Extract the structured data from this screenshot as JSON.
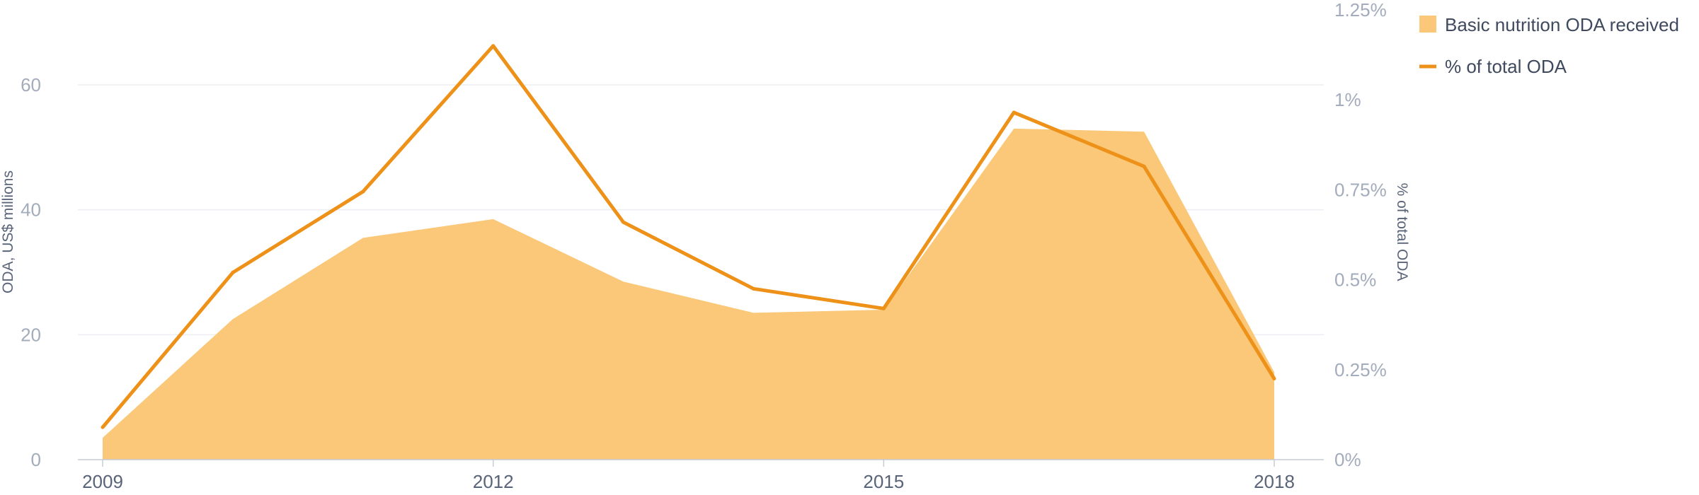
{
  "chart_data": {
    "type": "area",
    "x": [
      "2009",
      "2010",
      "2011",
      "2012",
      "2013",
      "2014",
      "2015",
      "2016",
      "2017",
      "2018"
    ],
    "series": [
      {
        "name": "Basic nutrition ODA received",
        "kind": "area",
        "axis": "left",
        "values": [
          3.5,
          22.5,
          35.5,
          38.5,
          28.5,
          23.5,
          24,
          53,
          52.5,
          14
        ],
        "color": "#fac878"
      },
      {
        "name": "% of total ODA",
        "kind": "line",
        "axis": "right",
        "values": [
          0.09,
          0.52,
          0.745,
          1.15,
          0.66,
          0.475,
          0.42,
          0.965,
          0.815,
          0.225
        ],
        "color": "#ee9118"
      }
    ],
    "x_tick_labels": [
      "2009",
      "2012",
      "2015",
      "2018"
    ],
    "x_tick_indices": [
      0,
      3,
      6,
      9
    ],
    "y_left": {
      "label": "ODA, US$ millions",
      "ticks": [
        0,
        20,
        40,
        60
      ],
      "tick_labels": [
        "0",
        "20",
        "40",
        "60"
      ],
      "range": [
        0,
        72
      ]
    },
    "y_right": {
      "label": "% of total ODA",
      "ticks": [
        0,
        0.25,
        0.5,
        0.75,
        1,
        1.25
      ],
      "tick_labels": [
        "0%",
        "0.25%",
        "0.5%",
        "0.75%",
        "1%",
        "1.25%"
      ],
      "range": [
        0,
        1.25
      ]
    },
    "grid": true,
    "legend_position": "top-right"
  }
}
